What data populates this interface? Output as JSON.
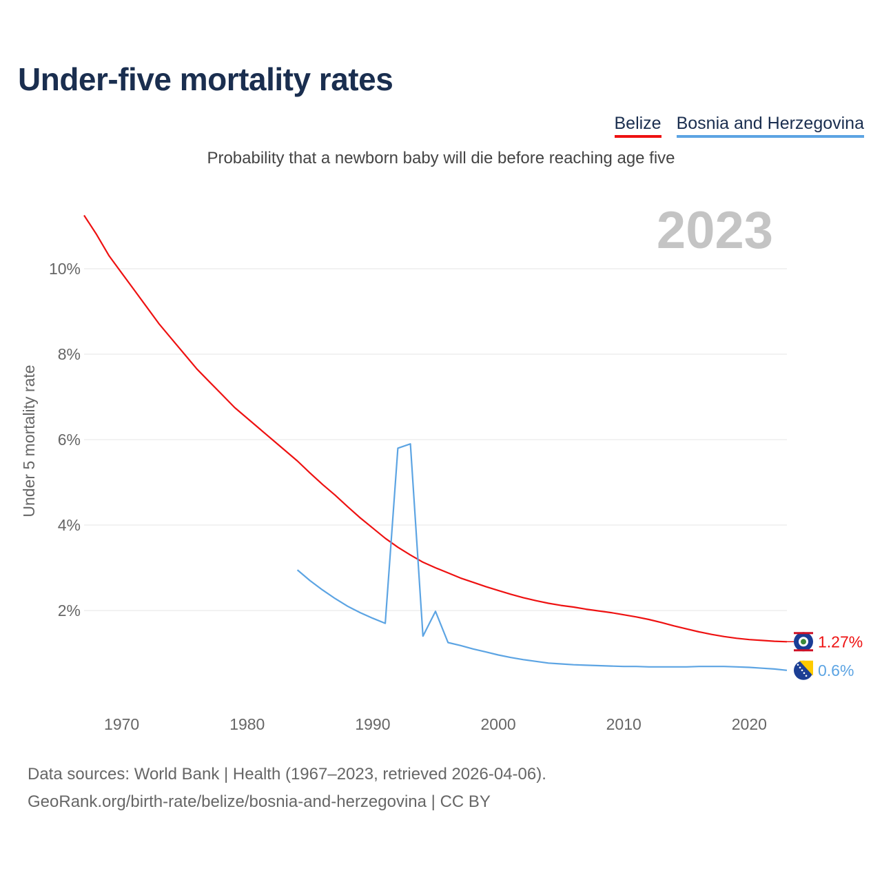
{
  "title": "Under-five mortality rates",
  "subtitle": "Probability that a newborn baby will die before reaching age five",
  "legend": [
    {
      "label": "Belize",
      "color": "#ee1111"
    },
    {
      "label": "Bosnia and Herzegovina",
      "color": "#5ca4e3"
    }
  ],
  "footer": {
    "line1": "Data sources: World Bank | Health (1967–2023, retrieved 2026-04-06).",
    "line2": "GeoRank.org/birth-rate/belize/bosnia-and-herzegovina | CC BY"
  },
  "chart_data": {
    "type": "line",
    "title": "Under-five mortality rates",
    "ylabel": "Under 5 mortality rate",
    "xlabel": "",
    "year_label": "2023",
    "xlim": [
      1967,
      2023
    ],
    "ylim": [
      0,
      11.2
    ],
    "x_ticks": [
      1970,
      1980,
      1990,
      2000,
      2010,
      2020
    ],
    "y_ticks": [
      2,
      4,
      6,
      8,
      10
    ],
    "y_tick_labels": [
      "2%",
      "4%",
      "6%",
      "8%",
      "10%"
    ],
    "grid": true,
    "series": [
      {
        "name": "Belize",
        "color": "#ee1111",
        "end_label": "1.27%",
        "x": [
          1967,
          1968,
          1969,
          1970,
          1971,
          1972,
          1973,
          1974,
          1975,
          1976,
          1977,
          1978,
          1979,
          1980,
          1981,
          1982,
          1983,
          1984,
          1985,
          1986,
          1987,
          1988,
          1989,
          1990,
          1991,
          1992,
          1993,
          1994,
          1995,
          1996,
          1997,
          1998,
          1999,
          2000,
          2001,
          2002,
          2003,
          2004,
          2005,
          2006,
          2007,
          2008,
          2009,
          2010,
          2011,
          2012,
          2013,
          2014,
          2015,
          2016,
          2017,
          2018,
          2019,
          2020,
          2021,
          2022,
          2023
        ],
        "values": [
          11.25,
          10.8,
          10.3,
          9.9,
          9.5,
          9.1,
          8.7,
          8.35,
          8.0,
          7.65,
          7.35,
          7.05,
          6.75,
          6.5,
          6.25,
          6.0,
          5.75,
          5.5,
          5.22,
          4.95,
          4.7,
          4.43,
          4.17,
          3.93,
          3.69,
          3.48,
          3.3,
          3.13,
          3.0,
          2.88,
          2.76,
          2.66,
          2.56,
          2.47,
          2.38,
          2.3,
          2.23,
          2.17,
          2.12,
          2.08,
          2.03,
          1.99,
          1.95,
          1.9,
          1.85,
          1.79,
          1.72,
          1.64,
          1.57,
          1.5,
          1.44,
          1.39,
          1.35,
          1.32,
          1.3,
          1.28,
          1.27
        ]
      },
      {
        "name": "Bosnia and Herzegovina",
        "color": "#5ca4e3",
        "end_label": "0.6%",
        "x": [
          1984,
          1985,
          1986,
          1987,
          1988,
          1989,
          1990,
          1991,
          1992,
          1993,
          1994,
          1995,
          1996,
          1997,
          1998,
          1999,
          2000,
          2001,
          2002,
          2003,
          2004,
          2005,
          2006,
          2007,
          2008,
          2009,
          2010,
          2011,
          2012,
          2013,
          2014,
          2015,
          2016,
          2017,
          2018,
          2019,
          2020,
          2021,
          2022,
          2023
        ],
        "values": [
          2.95,
          2.7,
          2.48,
          2.28,
          2.1,
          1.95,
          1.82,
          1.7,
          5.8,
          5.9,
          1.4,
          1.98,
          1.25,
          1.18,
          1.1,
          1.03,
          0.96,
          0.9,
          0.85,
          0.81,
          0.77,
          0.75,
          0.73,
          0.72,
          0.71,
          0.7,
          0.69,
          0.69,
          0.68,
          0.68,
          0.68,
          0.68,
          0.69,
          0.69,
          0.69,
          0.68,
          0.67,
          0.65,
          0.63,
          0.6
        ]
      }
    ]
  }
}
